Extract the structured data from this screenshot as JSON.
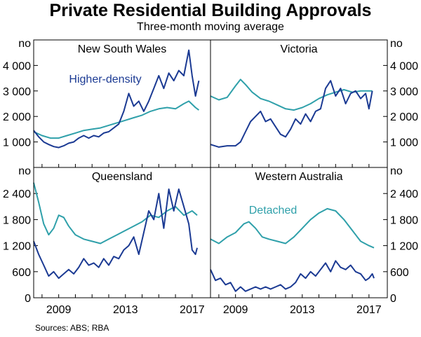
{
  "title": "Private Residential Building Approvals",
  "subtitle": "Three-month moving average",
  "source": "Sources:   ABS; RBA",
  "colors": {
    "dark": "#1b3a93",
    "light": "#2fa0aa"
  },
  "chart_data": [
    {
      "type": "line",
      "title": "New South Wales",
      "unit": "no",
      "ylim": [
        0,
        5000
      ],
      "yticks": [
        "1 000",
        "2 000",
        "3 000",
        "4 000"
      ],
      "ytick_values": [
        1000,
        2000,
        3000,
        4000
      ],
      "xticks": [
        "2009",
        "2013",
        "2017"
      ],
      "xtick_values": [
        2009,
        2013,
        2017
      ],
      "xlim": [
        2007.5,
        2018.1
      ],
      "annotation": "Higher-density",
      "series": [
        {
          "name": "Higher-density",
          "color": "dark",
          "points": [
            [
              2007.5,
              1450
            ],
            [
              2007.8,
              1200
            ],
            [
              2008.1,
              1000
            ],
            [
              2008.4,
              900
            ],
            [
              2008.7,
              820
            ],
            [
              2009.0,
              780
            ],
            [
              2009.3,
              850
            ],
            [
              2009.6,
              950
            ],
            [
              2009.9,
              1000
            ],
            [
              2010.2,
              1150
            ],
            [
              2010.5,
              1250
            ],
            [
              2010.8,
              1150
            ],
            [
              2011.1,
              1250
            ],
            [
              2011.4,
              1200
            ],
            [
              2011.7,
              1350
            ],
            [
              2012.0,
              1400
            ],
            [
              2012.3,
              1550
            ],
            [
              2012.6,
              1700
            ],
            [
              2012.9,
              2200
            ],
            [
              2013.2,
              2900
            ],
            [
              2013.5,
              2400
            ],
            [
              2013.8,
              2600
            ],
            [
              2014.1,
              2200
            ],
            [
              2014.4,
              2600
            ],
            [
              2014.7,
              3100
            ],
            [
              2015.0,
              3600
            ],
            [
              2015.3,
              3100
            ],
            [
              2015.6,
              3700
            ],
            [
              2015.9,
              3400
            ],
            [
              2016.2,
              3800
            ],
            [
              2016.5,
              3600
            ],
            [
              2016.8,
              4600
            ],
            [
              2017.0,
              3600
            ],
            [
              2017.2,
              2800
            ],
            [
              2017.4,
              3400
            ]
          ]
        },
        {
          "name": "Detached",
          "color": "light",
          "points": [
            [
              2007.5,
              1400
            ],
            [
              2008.0,
              1250
            ],
            [
              2008.5,
              1150
            ],
            [
              2009.0,
              1150
            ],
            [
              2009.5,
              1250
            ],
            [
              2010.0,
              1350
            ],
            [
              2010.5,
              1450
            ],
            [
              2011.0,
              1500
            ],
            [
              2011.5,
              1550
            ],
            [
              2012.0,
              1650
            ],
            [
              2012.5,
              1750
            ],
            [
              2013.0,
              1850
            ],
            [
              2013.5,
              1950
            ],
            [
              2014.0,
              2050
            ],
            [
              2014.5,
              2200
            ],
            [
              2015.0,
              2300
            ],
            [
              2015.5,
              2350
            ],
            [
              2016.0,
              2300
            ],
            [
              2016.5,
              2500
            ],
            [
              2016.8,
              2600
            ],
            [
              2017.2,
              2350
            ],
            [
              2017.4,
              2250
            ]
          ]
        }
      ]
    },
    {
      "type": "line",
      "title": "Victoria",
      "unit": "no",
      "ylim": [
        0,
        5000
      ],
      "yticks": [
        "1 000",
        "2 000",
        "3 000",
        "4 000"
      ],
      "ytick_values": [
        1000,
        2000,
        3000,
        4000
      ],
      "xticks": [
        "2009",
        "2013",
        "2017"
      ],
      "xtick_values": [
        2009,
        2013,
        2017
      ],
      "xlim": [
        2007.5,
        2018.1
      ],
      "series": [
        {
          "name": "Higher-density",
          "color": "dark",
          "points": [
            [
              2007.5,
              900
            ],
            [
              2008.0,
              800
            ],
            [
              2008.5,
              850
            ],
            [
              2009.0,
              850
            ],
            [
              2009.3,
              1000
            ],
            [
              2009.6,
              1400
            ],
            [
              2009.9,
              1800
            ],
            [
              2010.2,
              2000
            ],
            [
              2010.5,
              2200
            ],
            [
              2010.8,
              1800
            ],
            [
              2011.1,
              1900
            ],
            [
              2011.4,
              1600
            ],
            [
              2011.7,
              1300
            ],
            [
              2012.0,
              1200
            ],
            [
              2012.3,
              1500
            ],
            [
              2012.6,
              1900
            ],
            [
              2012.9,
              1700
            ],
            [
              2013.2,
              2100
            ],
            [
              2013.5,
              1800
            ],
            [
              2013.8,
              2200
            ],
            [
              2014.1,
              2300
            ],
            [
              2014.4,
              3100
            ],
            [
              2014.7,
              3400
            ],
            [
              2015.0,
              2800
            ],
            [
              2015.3,
              3100
            ],
            [
              2015.6,
              2500
            ],
            [
              2015.9,
              2900
            ],
            [
              2016.2,
              3000
            ],
            [
              2016.5,
              2700
            ],
            [
              2016.8,
              2900
            ],
            [
              2017.0,
              2300
            ],
            [
              2017.2,
              3000
            ]
          ]
        },
        {
          "name": "Detached",
          "color": "light",
          "points": [
            [
              2007.5,
              2800
            ],
            [
              2008.0,
              2650
            ],
            [
              2008.5,
              2750
            ],
            [
              2009.0,
              3200
            ],
            [
              2009.3,
              3450
            ],
            [
              2009.6,
              3250
            ],
            [
              2010.0,
              2950
            ],
            [
              2010.5,
              2700
            ],
            [
              2011.0,
              2600
            ],
            [
              2011.5,
              2450
            ],
            [
              2012.0,
              2300
            ],
            [
              2012.5,
              2250
            ],
            [
              2013.0,
              2350
            ],
            [
              2013.5,
              2500
            ],
            [
              2014.0,
              2700
            ],
            [
              2014.5,
              2850
            ],
            [
              2015.0,
              2950
            ],
            [
              2015.5,
              3050
            ],
            [
              2016.0,
              2950
            ],
            [
              2016.5,
              3000
            ],
            [
              2017.2,
              3000
            ]
          ]
        }
      ]
    },
    {
      "type": "line",
      "title": "Queensland",
      "unit": "no",
      "ylim": [
        0,
        3000
      ],
      "yticks": [
        "0",
        "600",
        "1 200",
        "1 800",
        "2 400"
      ],
      "ytick_values": [
        0,
        600,
        1200,
        1800,
        2400
      ],
      "xticks": [
        "2009",
        "2013",
        "2017"
      ],
      "xtick_values": [
        2009,
        2013,
        2017
      ],
      "xlim": [
        2007.5,
        2018.1
      ],
      "series": [
        {
          "name": "Higher-density",
          "color": "dark",
          "points": [
            [
              2007.5,
              1300
            ],
            [
              2007.8,
              1000
            ],
            [
              2008.1,
              750
            ],
            [
              2008.4,
              500
            ],
            [
              2008.7,
              600
            ],
            [
              2009.0,
              450
            ],
            [
              2009.3,
              550
            ],
            [
              2009.6,
              650
            ],
            [
              2009.9,
              550
            ],
            [
              2010.2,
              700
            ],
            [
              2010.5,
              900
            ],
            [
              2010.8,
              750
            ],
            [
              2011.1,
              800
            ],
            [
              2011.4,
              700
            ],
            [
              2011.7,
              900
            ],
            [
              2012.0,
              750
            ],
            [
              2012.3,
              950
            ],
            [
              2012.6,
              900
            ],
            [
              2012.9,
              1100
            ],
            [
              2013.2,
              1200
            ],
            [
              2013.5,
              1400
            ],
            [
              2013.8,
              1000
            ],
            [
              2014.1,
              1500
            ],
            [
              2014.4,
              2000
            ],
            [
              2014.7,
              1800
            ],
            [
              2015.0,
              2400
            ],
            [
              2015.3,
              1600
            ],
            [
              2015.6,
              2500
            ],
            [
              2015.9,
              2000
            ],
            [
              2016.2,
              2500
            ],
            [
              2016.5,
              2100
            ],
            [
              2016.8,
              1700
            ],
            [
              2017.0,
              1100
            ],
            [
              2017.2,
              1000
            ],
            [
              2017.3,
              1150
            ]
          ]
        },
        {
          "name": "Detached",
          "color": "light",
          "points": [
            [
              2007.5,
              2650
            ],
            [
              2007.8,
              2200
            ],
            [
              2008.1,
              1700
            ],
            [
              2008.4,
              1450
            ],
            [
              2008.7,
              1600
            ],
            [
              2009.0,
              1900
            ],
            [
              2009.3,
              1850
            ],
            [
              2009.6,
              1650
            ],
            [
              2010.0,
              1450
            ],
            [
              2010.5,
              1350
            ],
            [
              2011.0,
              1300
            ],
            [
              2011.5,
              1250
            ],
            [
              2012.0,
              1350
            ],
            [
              2012.5,
              1450
            ],
            [
              2013.0,
              1550
            ],
            [
              2013.5,
              1650
            ],
            [
              2014.0,
              1750
            ],
            [
              2014.5,
              1900
            ],
            [
              2015.0,
              1850
            ],
            [
              2015.5,
              2000
            ],
            [
              2016.0,
              2100
            ],
            [
              2016.5,
              1900
            ],
            [
              2017.0,
              2000
            ],
            [
              2017.3,
              1900
            ]
          ]
        }
      ]
    },
    {
      "type": "line",
      "title": "Western Australia",
      "unit": "no",
      "ylim": [
        0,
        3000
      ],
      "yticks": [
        "0",
        "600",
        "1 200",
        "1 800",
        "2 400"
      ],
      "ytick_values": [
        0,
        600,
        1200,
        1800,
        2400
      ],
      "xticks": [
        "2009",
        "2013",
        "2017"
      ],
      "xtick_values": [
        2009,
        2013,
        2017
      ],
      "xlim": [
        2007.5,
        2018.1
      ],
      "annotation": "Detached",
      "series": [
        {
          "name": "Higher-density",
          "color": "dark",
          "points": [
            [
              2007.5,
              650
            ],
            [
              2007.8,
              400
            ],
            [
              2008.1,
              450
            ],
            [
              2008.4,
              300
            ],
            [
              2008.7,
              350
            ],
            [
              2009.0,
              150
            ],
            [
              2009.3,
              250
            ],
            [
              2009.6,
              150
            ],
            [
              2009.9,
              200
            ],
            [
              2010.2,
              250
            ],
            [
              2010.5,
              200
            ],
            [
              2010.8,
              250
            ],
            [
              2011.1,
              200
            ],
            [
              2011.4,
              250
            ],
            [
              2011.7,
              300
            ],
            [
              2012.0,
              200
            ],
            [
              2012.3,
              250
            ],
            [
              2012.6,
              350
            ],
            [
              2012.9,
              550
            ],
            [
              2013.2,
              450
            ],
            [
              2013.5,
              600
            ],
            [
              2013.8,
              500
            ],
            [
              2014.1,
              650
            ],
            [
              2014.4,
              800
            ],
            [
              2014.7,
              600
            ],
            [
              2015.0,
              850
            ],
            [
              2015.3,
              700
            ],
            [
              2015.6,
              650
            ],
            [
              2015.9,
              750
            ],
            [
              2016.2,
              600
            ],
            [
              2016.5,
              550
            ],
            [
              2016.8,
              400
            ],
            [
              2017.0,
              450
            ],
            [
              2017.2,
              550
            ],
            [
              2017.3,
              450
            ]
          ]
        },
        {
          "name": "Detached",
          "color": "light",
          "points": [
            [
              2007.5,
              1350
            ],
            [
              2008.0,
              1250
            ],
            [
              2008.5,
              1400
            ],
            [
              2009.0,
              1500
            ],
            [
              2009.5,
              1700
            ],
            [
              2009.8,
              1750
            ],
            [
              2010.2,
              1600
            ],
            [
              2010.6,
              1400
            ],
            [
              2011.0,
              1350
            ],
            [
              2011.5,
              1300
            ],
            [
              2012.0,
              1250
            ],
            [
              2012.5,
              1400
            ],
            [
              2013.0,
              1600
            ],
            [
              2013.5,
              1800
            ],
            [
              2014.0,
              1950
            ],
            [
              2014.5,
              2050
            ],
            [
              2015.0,
              2000
            ],
            [
              2015.5,
              1800
            ],
            [
              2016.0,
              1550
            ],
            [
              2016.5,
              1300
            ],
            [
              2017.0,
              1200
            ],
            [
              2017.3,
              1150
            ]
          ]
        }
      ]
    }
  ]
}
